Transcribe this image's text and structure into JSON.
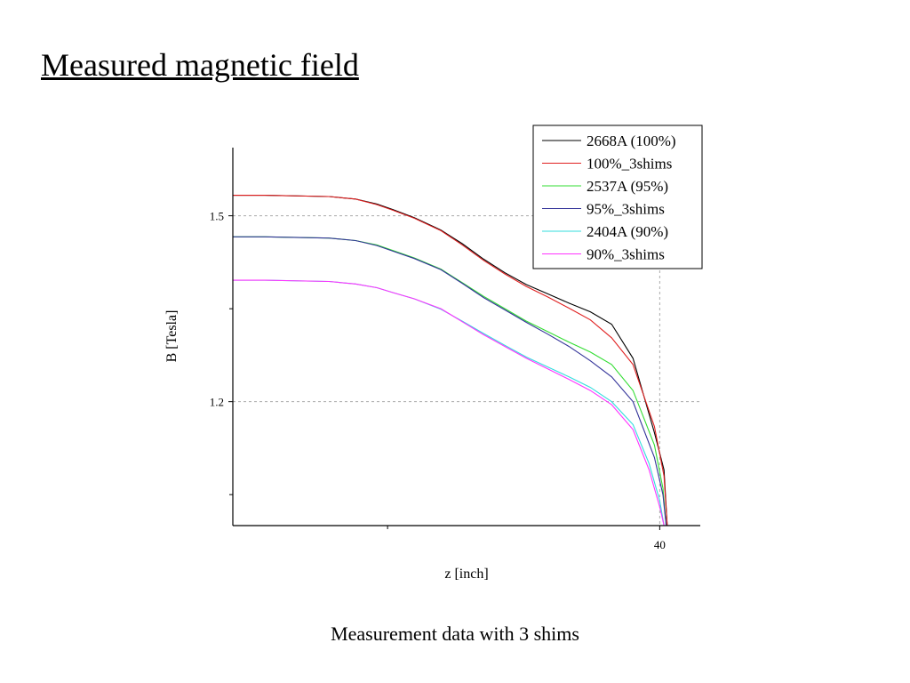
{
  "slide": {
    "title": "Measured magnetic field",
    "caption": "Measurement data with 3 shims"
  },
  "chart_data": {
    "type": "line",
    "title": "",
    "xlabel": "z [inch]",
    "ylabel": "B [Tesla]",
    "xlim": [
      0,
      43.8
    ],
    "ylim": [
      1.0,
      1.61
    ],
    "x_ticks": [
      {
        "value": 40,
        "label": "40"
      }
    ],
    "x_minor_ticks": [
      14.5
    ],
    "y_ticks": [
      {
        "value": 1.2,
        "label": "1.2"
      },
      {
        "value": 1.5,
        "label": "1.5"
      }
    ],
    "y_minor_ticks": [
      1.05,
      1.35
    ],
    "grid": "dashed at labeled ticks",
    "legend_position": "top-right",
    "series": [
      {
        "name": "2668A (100%)",
        "color": "#000000",
        "points": [
          [
            0,
            1.533
          ],
          [
            3,
            1.533
          ],
          [
            9,
            1.531
          ],
          [
            11.5,
            1.527
          ],
          [
            13.5,
            1.519
          ],
          [
            15,
            1.51
          ],
          [
            17,
            1.497
          ],
          [
            19.5,
            1.477
          ],
          [
            21.5,
            1.455
          ],
          [
            23.5,
            1.43
          ],
          [
            25.5,
            1.408
          ],
          [
            27.5,
            1.389
          ],
          [
            29.5,
            1.374
          ],
          [
            31.5,
            1.359
          ],
          [
            33.5,
            1.345
          ],
          [
            35.5,
            1.325
          ],
          [
            37.5,
            1.27
          ],
          [
            39.5,
            1.15
          ],
          [
            40.4,
            1.09
          ],
          [
            40.7,
            1.0
          ]
        ]
      },
      {
        "name": "100%_3shims",
        "color": "#e02020",
        "points": [
          [
            0,
            1.533
          ],
          [
            3,
            1.533
          ],
          [
            9,
            1.531
          ],
          [
            11.5,
            1.527
          ],
          [
            13.5,
            1.518
          ],
          [
            15,
            1.509
          ],
          [
            17,
            1.496
          ],
          [
            19.5,
            1.476
          ],
          [
            21.5,
            1.453
          ],
          [
            23.5,
            1.428
          ],
          [
            25.5,
            1.406
          ],
          [
            27.5,
            1.386
          ],
          [
            29.5,
            1.369
          ],
          [
            31.5,
            1.351
          ],
          [
            33.5,
            1.332
          ],
          [
            35.5,
            1.303
          ],
          [
            37.5,
            1.26
          ],
          [
            39.5,
            1.16
          ],
          [
            40.4,
            1.08
          ],
          [
            40.7,
            1.0
          ]
        ]
      },
      {
        "name": "2537A (95%)",
        "color": "#33dd33",
        "points": [
          [
            0,
            1.466
          ],
          [
            3,
            1.466
          ],
          [
            9,
            1.464
          ],
          [
            11.5,
            1.46
          ],
          [
            13.5,
            1.453
          ],
          [
            15,
            1.444
          ],
          [
            17,
            1.432
          ],
          [
            19.5,
            1.414
          ],
          [
            21.5,
            1.392
          ],
          [
            23.5,
            1.37
          ],
          [
            25.5,
            1.35
          ],
          [
            27.5,
            1.33
          ],
          [
            29.5,
            1.313
          ],
          [
            31.5,
            1.296
          ],
          [
            33.5,
            1.28
          ],
          [
            35.5,
            1.26
          ],
          [
            37.5,
            1.218
          ],
          [
            39.5,
            1.13
          ],
          [
            40.3,
            1.06
          ],
          [
            40.6,
            1.0
          ]
        ]
      },
      {
        "name": "95%_3shims",
        "color": "#333399",
        "points": [
          [
            0,
            1.466
          ],
          [
            3,
            1.466
          ],
          [
            9,
            1.464
          ],
          [
            11.5,
            1.46
          ],
          [
            13.5,
            1.452
          ],
          [
            15,
            1.443
          ],
          [
            17,
            1.431
          ],
          [
            19.5,
            1.413
          ],
          [
            21.5,
            1.391
          ],
          [
            23.5,
            1.368
          ],
          [
            25.5,
            1.348
          ],
          [
            27.5,
            1.328
          ],
          [
            29.5,
            1.309
          ],
          [
            31.5,
            1.289
          ],
          [
            33.5,
            1.266
          ],
          [
            35.5,
            1.24
          ],
          [
            37.5,
            1.2
          ],
          [
            39.5,
            1.11
          ],
          [
            40.3,
            1.05
          ],
          [
            40.6,
            1.0
          ]
        ]
      },
      {
        "name": "2404A (90%)",
        "color": "#33dddd",
        "points": [
          [
            0,
            1.396
          ],
          [
            3,
            1.396
          ],
          [
            9,
            1.394
          ],
          [
            11.5,
            1.39
          ],
          [
            13.5,
            1.384
          ],
          [
            15,
            1.376
          ],
          [
            17,
            1.366
          ],
          [
            19.5,
            1.349
          ],
          [
            21.5,
            1.33
          ],
          [
            23.5,
            1.31
          ],
          [
            25.5,
            1.291
          ],
          [
            27.5,
            1.272
          ],
          [
            29.5,
            1.256
          ],
          [
            31.5,
            1.24
          ],
          [
            33.5,
            1.223
          ],
          [
            35.5,
            1.2
          ],
          [
            37.5,
            1.163
          ],
          [
            39.0,
            1.1
          ],
          [
            40.0,
            1.04
          ],
          [
            40.4,
            1.0
          ]
        ]
      },
      {
        "name": "90%_3shims",
        "color": "#ff33ff",
        "points": [
          [
            0,
            1.396
          ],
          [
            3,
            1.396
          ],
          [
            9,
            1.394
          ],
          [
            11.5,
            1.39
          ],
          [
            13.5,
            1.384
          ],
          [
            15,
            1.376
          ],
          [
            17,
            1.366
          ],
          [
            19.5,
            1.35
          ],
          [
            21.5,
            1.329
          ],
          [
            23.5,
            1.308
          ],
          [
            25.5,
            1.289
          ],
          [
            27.5,
            1.27
          ],
          [
            29.5,
            1.253
          ],
          [
            31.5,
            1.236
          ],
          [
            33.5,
            1.218
          ],
          [
            35.5,
            1.195
          ],
          [
            37.5,
            1.155
          ],
          [
            39.0,
            1.09
          ],
          [
            40.0,
            1.03
          ],
          [
            40.4,
            1.0
          ]
        ]
      }
    ]
  }
}
